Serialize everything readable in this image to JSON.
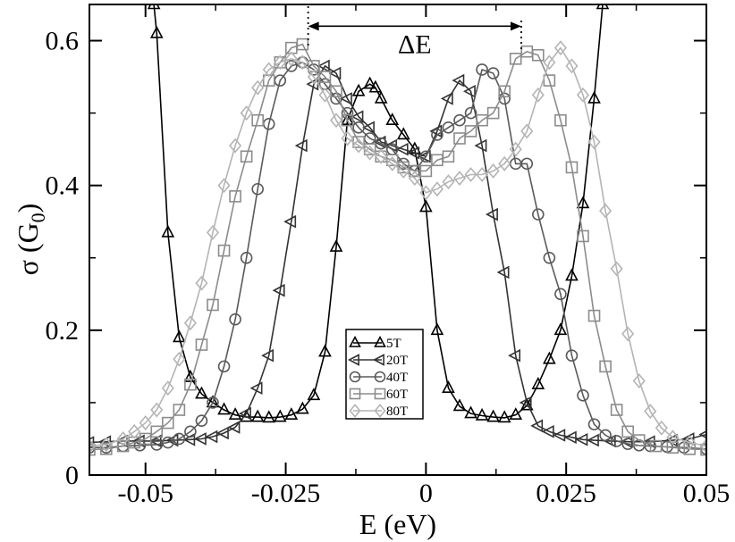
{
  "chart_data": {
    "type": "line",
    "title": "",
    "xlabel": "E (eV)",
    "ylabel": "σ (G0)",
    "ylabel_main": "σ (G",
    "ylabel_sub": "0",
    "ylabel_tail": ")",
    "xlim": [
      -0.06,
      0.05
    ],
    "ylim": [
      0,
      0.65
    ],
    "xticks": [
      -0.05,
      -0.025,
      0,
      0.025,
      0.05
    ],
    "xtick_labels": [
      "-0.05",
      "-0.025",
      "0",
      "0.025",
      "0.05"
    ],
    "yticks": [
      0,
      0.2,
      0.4,
      0.6
    ],
    "ytick_labels": [
      "0",
      "0.2",
      "0.4",
      "0.6"
    ],
    "grid": false,
    "legend_position": "bottom-center",
    "annotation": {
      "text": "ΔE",
      "x_start": -0.021,
      "x_end": 0.017,
      "y": 0.62
    },
    "series": [
      {
        "name": "5T",
        "marker": "triangle-up",
        "color": "#000000",
        "points": [
          [
            -0.0485,
            0.65
          ],
          [
            -0.048,
            0.61
          ],
          [
            -0.046,
            0.335
          ],
          [
            -0.044,
            0.19
          ],
          [
            -0.042,
            0.135
          ],
          [
            -0.04,
            0.112
          ],
          [
            -0.038,
            0.1
          ],
          [
            -0.036,
            0.09
          ],
          [
            -0.034,
            0.083
          ],
          [
            -0.032,
            0.08
          ],
          [
            -0.03,
            0.08
          ],
          [
            -0.028,
            0.079
          ],
          [
            -0.026,
            0.08
          ],
          [
            -0.024,
            0.083
          ],
          [
            -0.022,
            0.091
          ],
          [
            -0.02,
            0.11
          ],
          [
            -0.018,
            0.17
          ],
          [
            -0.016,
            0.315
          ],
          [
            -0.014,
            0.49
          ],
          [
            -0.012,
            0.53
          ],
          [
            -0.01,
            0.54
          ],
          [
            -0.009,
            0.535
          ],
          [
            -0.008,
            0.52
          ],
          [
            -0.006,
            0.49
          ],
          [
            -0.004,
            0.47
          ],
          [
            -0.002,
            0.45
          ],
          [
            0,
            0.37
          ],
          [
            0.002,
            0.2
          ],
          [
            0.004,
            0.12
          ],
          [
            0.006,
            0.095
          ],
          [
            0.008,
            0.085
          ],
          [
            0.01,
            0.082
          ],
          [
            0.012,
            0.08
          ],
          [
            0.014,
            0.079
          ],
          [
            0.016,
            0.083
          ],
          [
            0.018,
            0.096
          ],
          [
            0.02,
            0.125
          ],
          [
            0.022,
            0.16
          ],
          [
            0.024,
            0.2
          ],
          [
            0.026,
            0.275
          ],
          [
            0.028,
            0.375
          ],
          [
            0.03,
            0.52
          ],
          [
            0.0315,
            0.65
          ]
        ]
      },
      {
        "name": "20T",
        "marker": "triangle-left",
        "color": "#333333",
        "points": [
          [
            -0.06,
            0.045
          ],
          [
            -0.057,
            0.046
          ],
          [
            -0.054,
            0.047
          ],
          [
            -0.051,
            0.047
          ],
          [
            -0.048,
            0.047
          ],
          [
            -0.045,
            0.048
          ],
          [
            -0.042,
            0.049
          ],
          [
            -0.04,
            0.05
          ],
          [
            -0.038,
            0.053
          ],
          [
            -0.036,
            0.058
          ],
          [
            -0.034,
            0.066
          ],
          [
            -0.032,
            0.085
          ],
          [
            -0.03,
            0.12
          ],
          [
            -0.028,
            0.165
          ],
          [
            -0.026,
            0.255
          ],
          [
            -0.024,
            0.35
          ],
          [
            -0.022,
            0.455
          ],
          [
            -0.02,
            0.54
          ],
          [
            -0.018,
            0.565
          ],
          [
            -0.016,
            0.555
          ],
          [
            -0.014,
            0.52
          ],
          [
            -0.012,
            0.495
          ],
          [
            -0.01,
            0.48
          ],
          [
            -0.008,
            0.46
          ],
          [
            -0.006,
            0.455
          ],
          [
            -0.004,
            0.45
          ],
          [
            -0.002,
            0.445
          ],
          [
            0,
            0.44
          ],
          [
            0.002,
            0.475
          ],
          [
            0.004,
            0.52
          ],
          [
            0.006,
            0.545
          ],
          [
            0.008,
            0.53
          ],
          [
            0.01,
            0.455
          ],
          [
            0.012,
            0.36
          ],
          [
            0.014,
            0.28
          ],
          [
            0.016,
            0.165
          ],
          [
            0.018,
            0.1
          ],
          [
            0.02,
            0.068
          ],
          [
            0.022,
            0.06
          ],
          [
            0.024,
            0.055
          ],
          [
            0.026,
            0.052
          ],
          [
            0.028,
            0.049
          ],
          [
            0.03,
            0.048
          ],
          [
            0.033,
            0.047
          ],
          [
            0.036,
            0.046
          ],
          [
            0.04,
            0.046
          ],
          [
            0.044,
            0.048
          ],
          [
            0.047,
            0.05
          ],
          [
            0.05,
            0.056
          ]
        ]
      },
      {
        "name": "40T",
        "marker": "circle",
        "color": "#5a5a5a",
        "points": [
          [
            -0.06,
            0.038
          ],
          [
            -0.057,
            0.038
          ],
          [
            -0.054,
            0.04
          ],
          [
            -0.051,
            0.041
          ],
          [
            -0.048,
            0.042
          ],
          [
            -0.046,
            0.045
          ],
          [
            -0.044,
            0.05
          ],
          [
            -0.042,
            0.06
          ],
          [
            -0.04,
            0.075
          ],
          [
            -0.038,
            0.1
          ],
          [
            -0.036,
            0.15
          ],
          [
            -0.034,
            0.215
          ],
          [
            -0.032,
            0.3
          ],
          [
            -0.03,
            0.395
          ],
          [
            -0.028,
            0.485
          ],
          [
            -0.026,
            0.545
          ],
          [
            -0.024,
            0.565
          ],
          [
            -0.022,
            0.57
          ],
          [
            -0.02,
            0.56
          ],
          [
            -0.018,
            0.54
          ],
          [
            -0.016,
            0.52
          ],
          [
            -0.014,
            0.5
          ],
          [
            -0.012,
            0.48
          ],
          [
            -0.01,
            0.465
          ],
          [
            -0.008,
            0.458
          ],
          [
            -0.006,
            0.45
          ],
          [
            -0.004,
            0.43
          ],
          [
            -0.002,
            0.42
          ],
          [
            0,
            0.44
          ],
          [
            0.002,
            0.47
          ],
          [
            0.004,
            0.48
          ],
          [
            0.006,
            0.49
          ],
          [
            0.008,
            0.5
          ],
          [
            0.01,
            0.56
          ],
          [
            0.012,
            0.555
          ],
          [
            0.014,
            0.52
          ],
          [
            0.016,
            0.43
          ],
          [
            0.018,
            0.43
          ],
          [
            0.02,
            0.36
          ],
          [
            0.022,
            0.3
          ],
          [
            0.024,
            0.25
          ],
          [
            0.026,
            0.165
          ],
          [
            0.028,
            0.11
          ],
          [
            0.03,
            0.07
          ],
          [
            0.032,
            0.055
          ],
          [
            0.034,
            0.047
          ],
          [
            0.036,
            0.043
          ],
          [
            0.038,
            0.041
          ],
          [
            0.04,
            0.04
          ],
          [
            0.043,
            0.039
          ],
          [
            0.046,
            0.038
          ],
          [
            0.05,
            0.036
          ]
        ]
      },
      {
        "name": "60T",
        "marker": "square",
        "color": "#8c8c8c",
        "points": [
          [
            -0.06,
            0.035
          ],
          [
            -0.057,
            0.036
          ],
          [
            -0.054,
            0.04
          ],
          [
            -0.052,
            0.045
          ],
          [
            -0.05,
            0.05
          ],
          [
            -0.048,
            0.06
          ],
          [
            -0.046,
            0.072
          ],
          [
            -0.044,
            0.09
          ],
          [
            -0.042,
            0.125
          ],
          [
            -0.04,
            0.18
          ],
          [
            -0.038,
            0.235
          ],
          [
            -0.036,
            0.31
          ],
          [
            -0.034,
            0.385
          ],
          [
            -0.032,
            0.44
          ],
          [
            -0.03,
            0.49
          ],
          [
            -0.028,
            0.545
          ],
          [
            -0.026,
            0.57
          ],
          [
            -0.024,
            0.59
          ],
          [
            -0.022,
            0.595
          ],
          [
            -0.02,
            0.565
          ],
          [
            -0.018,
            0.55
          ],
          [
            -0.016,
            0.53
          ],
          [
            -0.014,
            0.49
          ],
          [
            -0.012,
            0.46
          ],
          [
            -0.01,
            0.45
          ],
          [
            -0.008,
            0.44
          ],
          [
            -0.006,
            0.435
          ],
          [
            -0.004,
            0.425
          ],
          [
            -0.002,
            0.42
          ],
          [
            0,
            0.42
          ],
          [
            0.002,
            0.435
          ],
          [
            0.004,
            0.44
          ],
          [
            0.006,
            0.465
          ],
          [
            0.008,
            0.475
          ],
          [
            0.01,
            0.49
          ],
          [
            0.012,
            0.5
          ],
          [
            0.014,
            0.53
          ],
          [
            0.016,
            0.575
          ],
          [
            0.018,
            0.585
          ],
          [
            0.02,
            0.58
          ],
          [
            0.022,
            0.545
          ],
          [
            0.024,
            0.49
          ],
          [
            0.026,
            0.425
          ],
          [
            0.028,
            0.33
          ],
          [
            0.03,
            0.22
          ],
          [
            0.032,
            0.15
          ],
          [
            0.034,
            0.09
          ],
          [
            0.036,
            0.06
          ],
          [
            0.038,
            0.048
          ],
          [
            0.041,
            0.04
          ],
          [
            0.044,
            0.038
          ],
          [
            0.047,
            0.036
          ],
          [
            0.05,
            0.035
          ]
        ]
      },
      {
        "name": "80T",
        "marker": "diamond",
        "color": "#b4b4b4",
        "points": [
          [
            -0.06,
            0.04
          ],
          [
            -0.057,
            0.042
          ],
          [
            -0.054,
            0.05
          ],
          [
            -0.052,
            0.06
          ],
          [
            -0.05,
            0.072
          ],
          [
            -0.048,
            0.09
          ],
          [
            -0.046,
            0.12
          ],
          [
            -0.044,
            0.16
          ],
          [
            -0.042,
            0.21
          ],
          [
            -0.04,
            0.265
          ],
          [
            -0.038,
            0.335
          ],
          [
            -0.036,
            0.4
          ],
          [
            -0.034,
            0.455
          ],
          [
            -0.032,
            0.5
          ],
          [
            -0.03,
            0.535
          ],
          [
            -0.028,
            0.56
          ],
          [
            -0.026,
            0.57
          ],
          [
            -0.024,
            0.575
          ],
          [
            -0.022,
            0.57
          ],
          [
            -0.02,
            0.55
          ],
          [
            -0.018,
            0.525
          ],
          [
            -0.016,
            0.49
          ],
          [
            -0.014,
            0.465
          ],
          [
            -0.012,
            0.455
          ],
          [
            -0.01,
            0.445
          ],
          [
            -0.008,
            0.44
          ],
          [
            -0.006,
            0.43
          ],
          [
            -0.004,
            0.42
          ],
          [
            -0.002,
            0.41
          ],
          [
            0,
            0.39
          ],
          [
            0.002,
            0.395
          ],
          [
            0.004,
            0.405
          ],
          [
            0.006,
            0.41
          ],
          [
            0.008,
            0.415
          ],
          [
            0.01,
            0.415
          ],
          [
            0.012,
            0.42
          ],
          [
            0.014,
            0.43
          ],
          [
            0.016,
            0.45
          ],
          [
            0.018,
            0.475
          ],
          [
            0.02,
            0.525
          ],
          [
            0.022,
            0.57
          ],
          [
            0.024,
            0.59
          ],
          [
            0.026,
            0.565
          ],
          [
            0.028,
            0.525
          ],
          [
            0.03,
            0.46
          ],
          [
            0.032,
            0.365
          ],
          [
            0.034,
            0.285
          ],
          [
            0.036,
            0.195
          ],
          [
            0.038,
            0.13
          ],
          [
            0.04,
            0.088
          ],
          [
            0.042,
            0.065
          ],
          [
            0.044,
            0.052
          ],
          [
            0.047,
            0.045
          ],
          [
            0.05,
            0.04
          ]
        ]
      }
    ]
  }
}
